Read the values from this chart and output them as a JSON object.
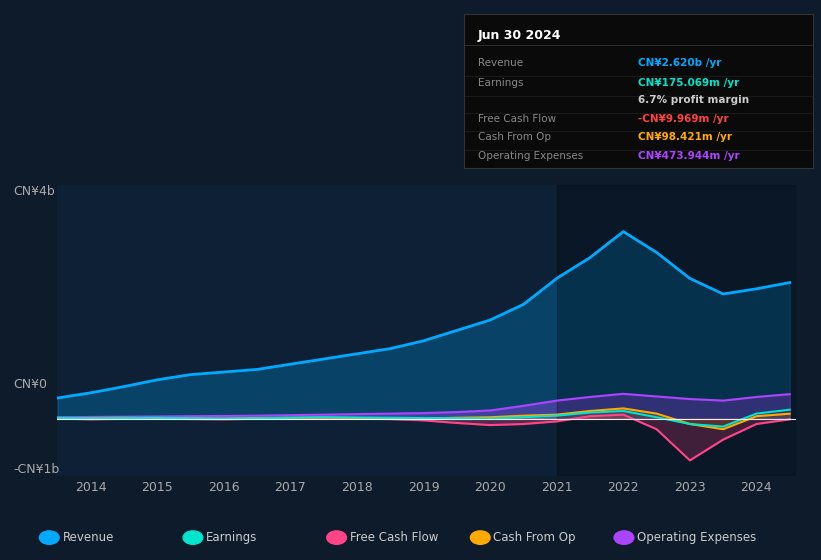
{
  "bg_color": "#0d1b2a",
  "chart_bg": "#0d2035",
  "title": "Jun 30 2024",
  "table_data": {
    "Revenue": {
      "value": "CN¥2.620b /yr",
      "color": "#00aaff"
    },
    "Earnings": {
      "value": "CN¥175.069m /yr",
      "color": "#00e5cc"
    },
    "profit_margin": {
      "value": "6.7% profit margin",
      "color": "#ffffff"
    },
    "Free Cash Flow": {
      "value": "-CN¥9.969m /yr",
      "color": "#ff4444"
    },
    "Cash From Op": {
      "value": "CN¥98.421m /yr",
      "color": "#ffaa00"
    },
    "Operating Expenses": {
      "value": "CN¥473.944m /yr",
      "color": "#aa44ff"
    }
  },
  "ylabel_top": "CN¥4b",
  "ylabel_zero": "CN¥0",
  "ylabel_neg": "-CN¥1b",
  "xlim": [
    2013.5,
    2024.6
  ],
  "ylim": [
    -1100000000.0,
    4500000000.0
  ],
  "zero_line": 0,
  "revenue_color": "#00aaff",
  "earnings_color": "#00e5cc",
  "fcf_color": "#ff4488",
  "cashop_color": "#ffaa00",
  "opex_color": "#aa44ff",
  "legend": [
    {
      "label": "Revenue",
      "color": "#00aaff"
    },
    {
      "label": "Earnings",
      "color": "#00e5cc"
    },
    {
      "label": "Free Cash Flow",
      "color": "#ff4488"
    },
    {
      "label": "Cash From Op",
      "color": "#ffaa00"
    },
    {
      "label": "Operating Expenses",
      "color": "#aa44ff"
    }
  ],
  "years": [
    2013.5,
    2014,
    2014.5,
    2015,
    2015.5,
    2016,
    2016.5,
    2017,
    2017.5,
    2018,
    2018.5,
    2019,
    2019.5,
    2020,
    2020.5,
    2021,
    2021.5,
    2022,
    2022.5,
    2023,
    2023.5,
    2024,
    2024.5
  ],
  "revenue": [
    400000000.0,
    500000000.0,
    620000000.0,
    750000000.0,
    850000000.0,
    900000000.0,
    950000000.0,
    1050000000.0,
    1150000000.0,
    1250000000.0,
    1350000000.0,
    1500000000.0,
    1700000000.0,
    1900000000.0,
    2200000000.0,
    2700000000.0,
    3100000000.0,
    3600000000.0,
    3200000000.0,
    2700000000.0,
    2400000000.0,
    2500000000.0,
    2620000000.0
  ],
  "earnings": [
    20000000.0,
    10000000.0,
    15000000.0,
    20000000.0,
    10000000.0,
    5000000.0,
    10000000.0,
    20000000.0,
    30000000.0,
    25000000.0,
    20000000.0,
    15000000.0,
    10000000.0,
    5000000.0,
    30000000.0,
    60000000.0,
    120000000.0,
    150000000.0,
    30000000.0,
    -100000000.0,
    -150000000.0,
    100000000.0,
    175000000.0
  ],
  "fcf": [
    5000000.0,
    -10000000.0,
    0,
    5000000.0,
    -5000000.0,
    -10000000.0,
    0,
    10000000.0,
    5000000.0,
    0,
    -5000000.0,
    -30000000.0,
    -80000000.0,
    -120000000.0,
    -100000000.0,
    -50000000.0,
    50000000.0,
    80000000.0,
    -200000000.0,
    -800000000.0,
    -400000000.0,
    -100000000.0,
    -10000000.0
  ],
  "cashop": [
    10000000.0,
    15000000.0,
    20000000.0,
    10000000.0,
    5000000.0,
    0,
    15000000.0,
    20000000.0,
    25000000.0,
    15000000.0,
    10000000.0,
    5000000.0,
    20000000.0,
    30000000.0,
    60000000.0,
    80000000.0,
    150000000.0,
    200000000.0,
    100000000.0,
    -100000000.0,
    -200000000.0,
    50000000.0,
    98000000.0
  ],
  "opex": [
    30000000.0,
    35000000.0,
    40000000.0,
    45000000.0,
    50000000.0,
    55000000.0,
    60000000.0,
    70000000.0,
    80000000.0,
    90000000.0,
    100000000.0,
    110000000.0,
    130000000.0,
    160000000.0,
    250000000.0,
    350000000.0,
    420000000.0,
    480000000.0,
    430000000.0,
    380000000.0,
    350000000.0,
    420000000.0,
    474000000.0
  ]
}
